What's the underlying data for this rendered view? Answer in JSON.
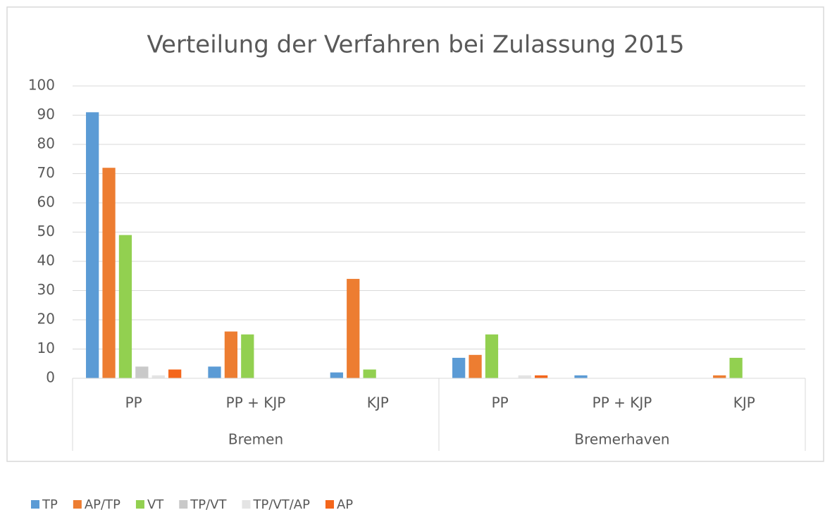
{
  "chart_data": {
    "type": "bar",
    "title": "Verteilung der Verfahren bei Zulassung 2015",
    "categories": [
      "PP",
      "PP + KJP",
      "KJP",
      "PP",
      "PP + KJP",
      "KJP"
    ],
    "group_labels": [
      "Bremen",
      "Bremerhaven"
    ],
    "series": [
      {
        "name": "TP",
        "color": "#5b9bd5",
        "values": [
          91,
          4,
          2,
          7,
          1,
          0
        ]
      },
      {
        "name": "AP/TP",
        "color": "#ed7d31",
        "values": [
          72,
          16,
          34,
          8,
          0,
          1
        ]
      },
      {
        "name": "VT",
        "color": "#92d050",
        "values": [
          49,
          15,
          3,
          15,
          0,
          7
        ]
      },
      {
        "name": "TP/VT",
        "color": "#c9c9c9",
        "values": [
          4,
          0,
          0,
          0,
          0,
          0
        ]
      },
      {
        "name": "TP/VT/AP",
        "color": "#e4e4e4",
        "values": [
          1,
          0,
          0,
          1,
          0,
          0
        ]
      },
      {
        "name": "AP",
        "color": "#f4661b",
        "values": [
          3,
          0,
          0,
          1,
          0,
          0
        ]
      }
    ],
    "ylim": [
      0,
      100
    ],
    "yticks": [
      0,
      10,
      20,
      30,
      40,
      50,
      60,
      70,
      80,
      90,
      100
    ],
    "grid": true,
    "legend": "bottom"
  }
}
